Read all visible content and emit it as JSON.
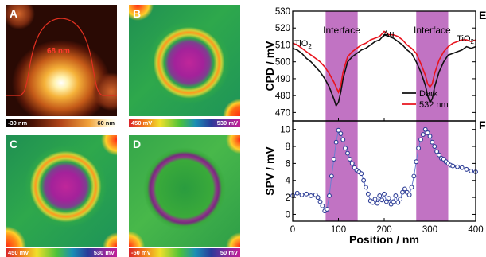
{
  "figure": {
    "panels": {
      "A": {
        "label": "A",
        "height_label": "68 nm",
        "scale_min": "-30 nm",
        "scale_max": "60 nm"
      },
      "B": {
        "label": "B",
        "scale_min": "450 mV",
        "scale_max": "530 mV"
      },
      "C": {
        "label": "C",
        "scale_min": "450 mV",
        "scale_max": "530 mV"
      },
      "D": {
        "label": "D",
        "scale_min": "-50 mV",
        "scale_max": "50 mV"
      }
    }
  },
  "chart_data": [
    {
      "panel": "E",
      "type": "line",
      "xlabel": "",
      "ylabel": "CPD / mV",
      "xlim": [
        0,
        400
      ],
      "ylim": [
        465,
        530
      ],
      "yticks": [
        470,
        480,
        490,
        500,
        510,
        520,
        530
      ],
      "annotations": [
        "TiO2",
        "Interface",
        "Au",
        "Interface",
        "TiO2"
      ],
      "shaded_regions": [
        [
          72,
          142
        ],
        [
          270,
          340
        ]
      ],
      "legend_position": "center-right",
      "colors": {
        "dark": "#111111",
        "light": "#e8141e",
        "shade": "#b65ab8"
      },
      "series": [
        {
          "name": "Dark",
          "x": [
            0,
            10,
            20,
            30,
            40,
            50,
            60,
            70,
            80,
            90,
            95,
            100,
            105,
            110,
            120,
            130,
            140,
            150,
            160,
            170,
            180,
            190,
            200,
            210,
            220,
            230,
            240,
            250,
            260,
            270,
            280,
            290,
            295,
            300,
            305,
            310,
            320,
            330,
            340,
            350,
            360,
            370,
            380,
            390,
            400
          ],
          "y": [
            508,
            507,
            505,
            502,
            500,
            497,
            494,
            490,
            485,
            478,
            474,
            476,
            482,
            490,
            500,
            503,
            505,
            507,
            508,
            510,
            512,
            513,
            516,
            515,
            514,
            512,
            510,
            507,
            505,
            500,
            494,
            486,
            480,
            476,
            478,
            485,
            494,
            500,
            504,
            505,
            506,
            507,
            509,
            508,
            509
          ]
        },
        {
          "name": "532 nm",
          "x": [
            0,
            10,
            20,
            30,
            40,
            50,
            60,
            70,
            80,
            90,
            95,
            100,
            105,
            110,
            120,
            130,
            140,
            150,
            160,
            170,
            180,
            190,
            200,
            210,
            220,
            230,
            240,
            250,
            260,
            270,
            280,
            290,
            295,
            300,
            305,
            310,
            320,
            330,
            340,
            350,
            360,
            370,
            380,
            390,
            400
          ],
          "y": [
            511,
            510,
            508,
            506,
            504,
            502,
            500,
            497,
            493,
            488,
            485,
            482,
            486,
            494,
            503,
            506,
            508,
            510,
            511,
            513,
            514,
            515,
            518,
            516,
            516,
            515,
            513,
            510,
            508,
            505,
            499,
            492,
            487,
            485,
            487,
            493,
            501,
            506,
            509,
            511,
            512,
            513,
            513,
            512,
            513
          ]
        }
      ]
    },
    {
      "panel": "F",
      "type": "scatter",
      "xlabel": "Position / nm",
      "ylabel": "SPV / mV",
      "xlim": [
        0,
        400
      ],
      "ylim": [
        -0.8,
        11
      ],
      "xticks": [
        0,
        100,
        200,
        300,
        400
      ],
      "yticks": [
        0,
        2,
        4,
        6,
        8,
        10
      ],
      "shaded_regions": [
        [
          72,
          142
        ],
        [
          270,
          340
        ]
      ],
      "colors": {
        "marker": "#2e3e96",
        "line": "#6b7fd1"
      },
      "series": [
        {
          "name": "",
          "x": [
            0,
            10,
            20,
            30,
            40,
            50,
            55,
            60,
            65,
            70,
            75,
            80,
            85,
            90,
            95,
            100,
            105,
            110,
            115,
            120,
            125,
            130,
            135,
            140,
            145,
            150,
            155,
            160,
            165,
            170,
            175,
            180,
            185,
            190,
            195,
            200,
            205,
            210,
            215,
            220,
            225,
            230,
            235,
            240,
            245,
            250,
            255,
            260,
            265,
            270,
            275,
            280,
            285,
            290,
            295,
            300,
            305,
            310,
            315,
            320,
            325,
            330,
            335,
            340,
            345,
            350,
            360,
            370,
            380,
            390,
            400
          ],
          "y": [
            2.2,
            2.5,
            2.3,
            2.4,
            2.2,
            2.3,
            2.0,
            1.5,
            1.0,
            0.4,
            0.6,
            2.2,
            4.5,
            6.5,
            8.5,
            9.9,
            9.5,
            8.8,
            7.8,
            7.2,
            6.5,
            6.0,
            5.5,
            5.2,
            5.0,
            4.8,
            4.0,
            3.2,
            2.4,
            1.6,
            1.4,
            1.8,
            1.3,
            2.2,
            1.7,
            2.4,
            1.5,
            1.9,
            1.2,
            1.5,
            2.2,
            1.4,
            1.8,
            2.6,
            3.0,
            2.6,
            2.3,
            3.2,
            4.5,
            6.2,
            7.8,
            8.8,
            9.4,
            10.0,
            9.6,
            9.2,
            8.5,
            8.0,
            7.4,
            7.0,
            6.6,
            6.5,
            6.2,
            6.0,
            5.8,
            5.7,
            5.6,
            5.5,
            5.3,
            5.1,
            5.0
          ]
        }
      ]
    }
  ]
}
